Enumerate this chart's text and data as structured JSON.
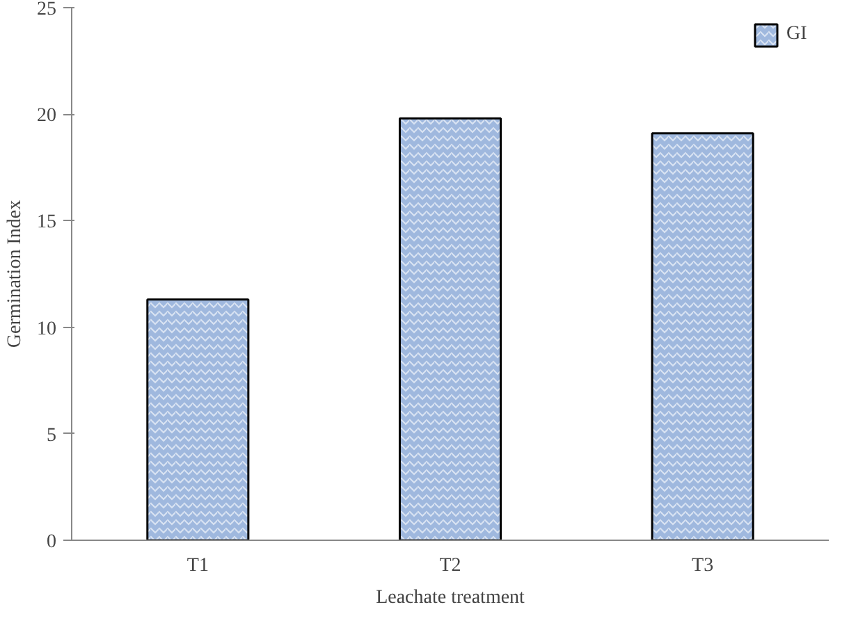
{
  "chart_data": {
    "type": "bar",
    "xlabel": "Leachate treatment",
    "ylabel": "Germination Index",
    "categories": [
      "T1",
      "T2",
      "T3"
    ],
    "series": [
      {
        "name": "GI",
        "color": "#9fb8de",
        "values": [
          11.3,
          19.8,
          19.1
        ]
      }
    ],
    "ylim": [
      0,
      25
    ],
    "yticks": [
      0,
      5,
      10,
      15,
      20,
      25
    ],
    "grid": false,
    "legend": "top right"
  }
}
